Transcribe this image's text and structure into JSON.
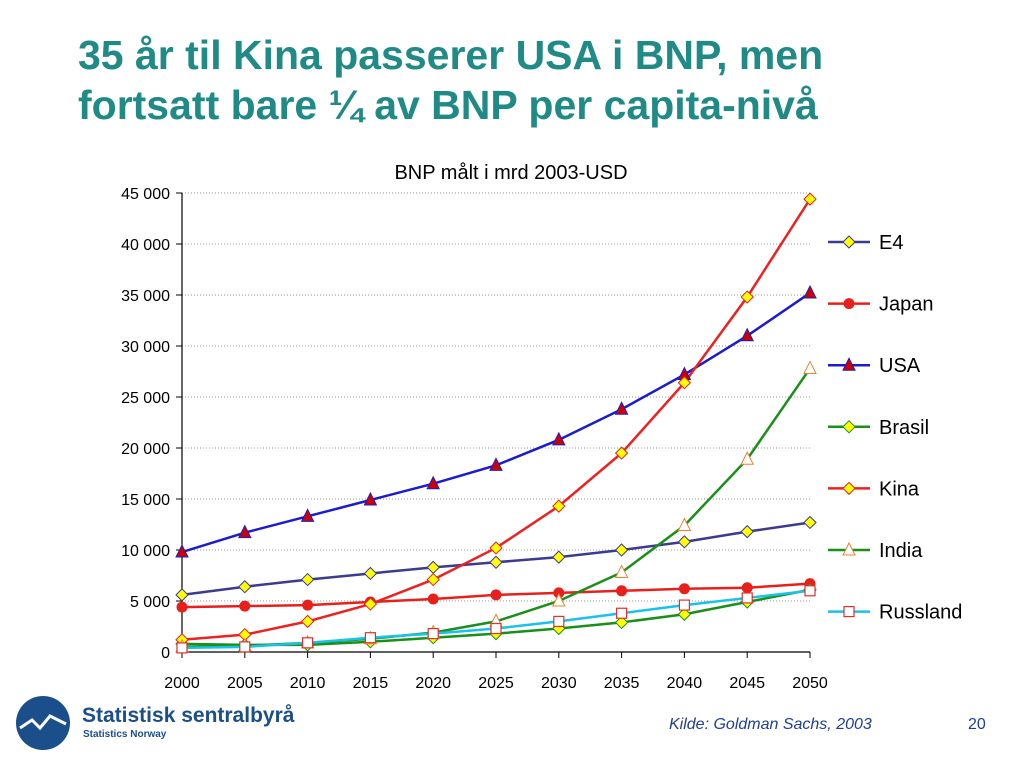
{
  "slide": {
    "title_line1": "35 år til Kina passerer USA i BNP, men",
    "title_line2": "fortsatt bare ¼ av BNP per capita-nivå",
    "source": "Kilde: Goldman Sachs, 2003",
    "page_number": "20"
  },
  "logo": {
    "main": "Statistisk sentralbyrå",
    "sub": "Statistics Norway",
    "color": "#1b4f8c"
  },
  "chart_data": {
    "type": "line",
    "title": "BNP målt i mrd 2003-USD",
    "xlabel": "",
    "ylabel": "",
    "x": [
      2000,
      2005,
      2010,
      2015,
      2020,
      2025,
      2030,
      2035,
      2040,
      2045,
      2050
    ],
    "ylim": [
      0,
      45000
    ],
    "yticks": [
      0,
      5000,
      10000,
      15000,
      20000,
      25000,
      30000,
      35000,
      40000,
      45000
    ],
    "ytick_labels": [
      "0",
      "5 000",
      "10 000",
      "15 000",
      "20 000",
      "25 000",
      "30 000",
      "35 000",
      "40 000",
      "45 000"
    ],
    "grid": true,
    "legend_position": "right",
    "series": [
      {
        "name": "E4",
        "color": "#3b3b8f",
        "marker": "diamond",
        "marker_fill": "#ffff00",
        "values": [
          5600,
          6400,
          7100,
          7700,
          8300,
          8800,
          9300,
          10000,
          10800,
          11800,
          12700
        ]
      },
      {
        "name": "Japan",
        "color": "#e8201c",
        "marker": "circle",
        "marker_fill": "#e8201c",
        "values": [
          4400,
          4500,
          4600,
          4900,
          5200,
          5600,
          5800,
          6000,
          6200,
          6300,
          6700
        ]
      },
      {
        "name": "USA",
        "color": "#1c1ccc",
        "marker": "triangle",
        "marker_fill": "#cc0000",
        "values": [
          9800,
          11700,
          13300,
          14900,
          16500,
          18300,
          20800,
          23800,
          27200,
          31000,
          35200
        ]
      },
      {
        "name": "Brasil",
        "color": "#1a8f1a",
        "marker": "diamond",
        "marker_fill": "#ffff00",
        "values": [
          800,
          700,
          700,
          1000,
          1400,
          1800,
          2300,
          2900,
          3700,
          4900,
          6100
        ]
      },
      {
        "name": "Kina",
        "color": "#ee2020",
        "marker": "diamond",
        "marker_fill": "#ffff00",
        "values": [
          1200,
          1700,
          3000,
          4700,
          7100,
          10200,
          14300,
          19500,
          26400,
          34800,
          44400
        ]
      },
      {
        "name": "India",
        "color": "#1a8f1a",
        "marker": "triangle",
        "marker_fill": "#ffffff",
        "marker_stroke": "#f08030",
        "values": [
          500,
          600,
          900,
          1300,
          1900,
          3000,
          5000,
          7800,
          12400,
          18900,
          27800
        ]
      },
      {
        "name": "Russland",
        "color": "#19c2e8",
        "marker": "square",
        "marker_fill": "#ffffff",
        "marker_stroke": "#e03030",
        "values": [
          400,
          500,
          900,
          1400,
          1800,
          2300,
          3000,
          3800,
          4600,
          5300,
          6000
        ]
      }
    ]
  }
}
